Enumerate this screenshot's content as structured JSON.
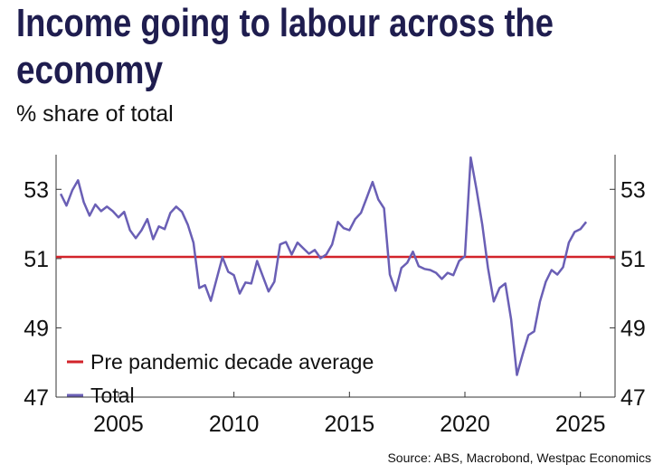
{
  "chart_data": {
    "type": "line",
    "title": [
      "Income going to labour across the",
      "economy"
    ],
    "subtitle": "% share of total",
    "source": "Source: ABS, Macrobond, Westpac Economics",
    "xlim": [
      2002.3,
      2026.5
    ],
    "xticks": [
      2005,
      2010,
      2015,
      2020,
      2025
    ],
    "ylim": [
      47,
      54
    ],
    "yticks": [
      47,
      49,
      51,
      53
    ],
    "y2lim": [
      47,
      54
    ],
    "y2ticks": [
      47,
      49,
      51,
      53
    ],
    "legend": "bottom-left",
    "reference_line": {
      "name": "Pre pandemic decade average",
      "value": 51.05,
      "color": "#d2232a"
    },
    "series": [
      {
        "name": "Total",
        "color": "#6a5fb5",
        "x": [
          2002.5,
          2002.75,
          2003,
          2003.25,
          2003.5,
          2003.75,
          2004,
          2004.25,
          2004.5,
          2004.75,
          2005,
          2005.25,
          2005.5,
          2005.75,
          2006,
          2006.25,
          2006.5,
          2006.75,
          2007,
          2007.25,
          2007.5,
          2007.75,
          2008,
          2008.25,
          2008.5,
          2008.75,
          2009,
          2009.25,
          2009.5,
          2009.75,
          2010,
          2010.25,
          2010.5,
          2010.75,
          2011,
          2011.25,
          2011.5,
          2011.75,
          2012,
          2012.25,
          2012.5,
          2012.75,
          2013,
          2013.25,
          2013.5,
          2013.75,
          2014,
          2014.25,
          2014.5,
          2014.75,
          2015,
          2015.25,
          2015.5,
          2015.75,
          2016,
          2016.25,
          2016.5,
          2016.75,
          2017,
          2017.25,
          2017.5,
          2017.75,
          2018,
          2018.25,
          2018.5,
          2018.75,
          2019,
          2019.25,
          2019.5,
          2019.75,
          2020,
          2020.25,
          2020.5,
          2020.75,
          2021,
          2021.25,
          2021.5,
          2021.75,
          2022,
          2022.25,
          2022.5,
          2022.75,
          2023,
          2023.25,
          2023.5,
          2023.75,
          2024,
          2024.25,
          2024.5,
          2024.75,
          2025,
          2025.25
        ],
        "values": [
          52.87,
          52.53,
          52.97,
          53.26,
          52.63,
          52.24,
          52.56,
          52.37,
          52.5,
          52.37,
          52.19,
          52.35,
          51.82,
          51.59,
          51.82,
          52.14,
          51.56,
          51.93,
          51.85,
          52.32,
          52.5,
          52.35,
          51.98,
          51.46,
          50.15,
          50.23,
          49.78,
          50.41,
          51.04,
          50.62,
          50.52,
          49.99,
          50.31,
          50.28,
          50.93,
          50.49,
          50.05,
          50.33,
          51.41,
          51.48,
          51.12,
          51.46,
          51.3,
          51.14,
          51.25,
          51.01,
          51.12,
          51.41,
          52.06,
          51.88,
          51.82,
          52.14,
          52.32,
          52.76,
          53.21,
          52.71,
          52.45,
          50.54,
          50.07,
          50.73,
          50.88,
          51.2,
          50.78,
          50.7,
          50.67,
          50.59,
          50.41,
          50.59,
          50.52,
          50.93,
          51.07,
          53.92,
          53.0,
          51.98,
          50.73,
          49.76,
          50.15,
          50.28,
          49.24,
          47.64,
          48.24,
          48.79,
          48.9,
          49.76,
          50.33,
          50.67,
          50.54,
          50.75,
          51.46,
          51.77,
          51.85,
          52.06
        ]
      }
    ]
  }
}
